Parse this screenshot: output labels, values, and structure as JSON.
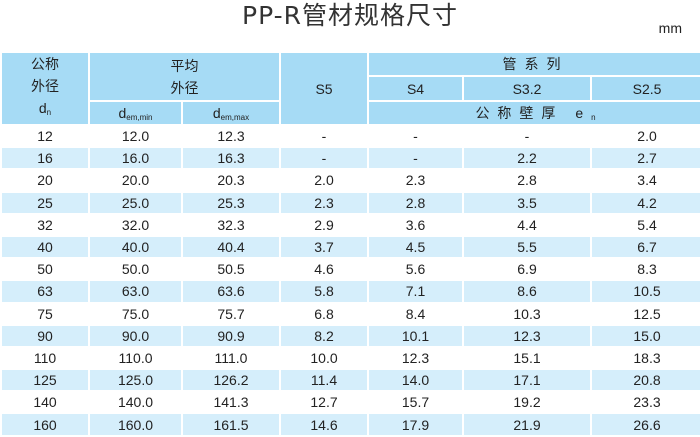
{
  "title": "PP-R管材规格尺寸",
  "unit": "mm",
  "header": {
    "nominal_od": [
      "公称",
      "外径",
      "d"
    ],
    "nominal_od_sub": "n",
    "mean_od": [
      "平均",
      "外径"
    ],
    "dem_min": "d",
    "dem_min_sub": "em,min",
    "dem_max": "d",
    "dem_max_sub": "em,max",
    "s5": "S5",
    "pipe_series": "管系列",
    "s4": "S4",
    "s32": "S3.2",
    "s25": "S2.5",
    "wall": "公称壁厚 e",
    "wall_sub": "n"
  },
  "rows": [
    [
      "12",
      "12.0",
      "12.3",
      "-",
      "-",
      "-",
      "2.0"
    ],
    [
      "16",
      "16.0",
      "16.3",
      "-",
      "-",
      "2.2",
      "2.7"
    ],
    [
      "20",
      "20.0",
      "20.3",
      "2.0",
      "2.3",
      "2.8",
      "3.4"
    ],
    [
      "25",
      "25.0",
      "25.3",
      "2.3",
      "2.8",
      "3.5",
      "4.2"
    ],
    [
      "32",
      "32.0",
      "32.3",
      "2.9",
      "3.6",
      "4.4",
      "5.4"
    ],
    [
      "40",
      "40.0",
      "40.4",
      "3.7",
      "4.5",
      "5.5",
      "6.7"
    ],
    [
      "50",
      "50.0",
      "50.5",
      "4.6",
      "5.6",
      "6.9",
      "8.3"
    ],
    [
      "63",
      "63.0",
      "63.6",
      "5.8",
      "7.1",
      "8.6",
      "10.5"
    ],
    [
      "75",
      "75.0",
      "75.7",
      "6.8",
      "8.4",
      "10.3",
      "12.5"
    ],
    [
      "90",
      "90.0",
      "90.9",
      "8.2",
      "10.1",
      "12.3",
      "15.0"
    ],
    [
      "110",
      "110.0",
      "111.0",
      "10.0",
      "12.3",
      "15.1",
      "18.3"
    ],
    [
      "125",
      "125.0",
      "126.2",
      "11.4",
      "14.0",
      "17.1",
      "20.8"
    ],
    [
      "140",
      "140.0",
      "141.3",
      "12.7",
      "15.7",
      "19.2",
      "23.3"
    ],
    [
      "160",
      "160.0",
      "161.5",
      "14.6",
      "17.9",
      "21.9",
      "26.6"
    ]
  ]
}
